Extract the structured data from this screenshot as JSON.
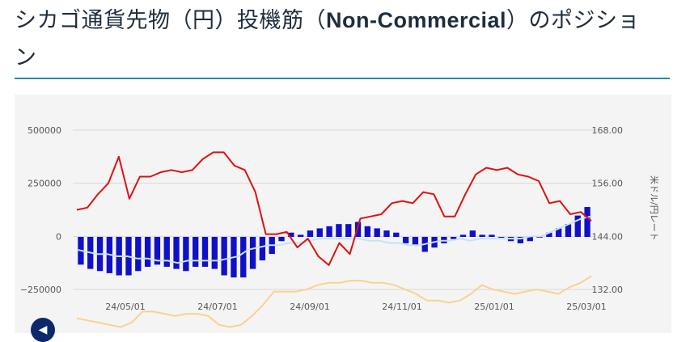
{
  "title": {
    "prefix": "シカゴ通貨先物（円）投機筋（",
    "bold": "Non-Commercial",
    "suffix": "）のポジション"
  },
  "nav": {
    "prev_icon": "◀"
  },
  "colors": {
    "bars": "#1010c8",
    "red_line": "#e01010",
    "light_blue_line": "#c6e2f7",
    "orange_line": "#fbd190",
    "grid": "#d8d8d8",
    "accent_rule": "#2a86a8",
    "button": "#0b2a6b"
  },
  "chart_data": {
    "type": "bar+line",
    "right_axis_label": "米ドル/円レート",
    "left_ticks": [
      "500000",
      "250000",
      "0",
      "−250000"
    ],
    "right_ticks": [
      "168.00",
      "156.00",
      "144.00",
      "132.00"
    ],
    "x_ticks": [
      "24/05/01",
      "24/07/01",
      "24/09/01",
      "24/11/01",
      "25/01/01",
      "25/03/01"
    ],
    "ylim_left": [
      -250000,
      500000
    ],
    "ylim_right": [
      132,
      168
    ],
    "grid": true,
    "net_position_bars": [
      -130000,
      -150000,
      -160000,
      -170000,
      -180000,
      -180000,
      -160000,
      -140000,
      -130000,
      -140000,
      -150000,
      -160000,
      -140000,
      -140000,
      -150000,
      -180000,
      -190000,
      -190000,
      -150000,
      -110000,
      -80000,
      -20000,
      20000,
      10000,
      30000,
      40000,
      50000,
      60000,
      60000,
      70000,
      50000,
      40000,
      30000,
      20000,
      -30000,
      -40000,
      -70000,
      -50000,
      -30000,
      -10000,
      10000,
      30000,
      10000,
      10000,
      0,
      -20000,
      -30000,
      -20000,
      0,
      20000,
      40000,
      60000,
      100000,
      140000
    ],
    "red_line": [
      150,
      150.5,
      153.5,
      156,
      162,
      152.5,
      157.5,
      157.5,
      158.5,
      159,
      158.5,
      159,
      161.5,
      163,
      163,
      160,
      159,
      154,
      144.5,
      144.5,
      145,
      141.5,
      143.5,
      139.5,
      137.5,
      142.5,
      140,
      148,
      148.5,
      149,
      151.5,
      152,
      151.5,
      154,
      153.5,
      148.5,
      148.5,
      153.5,
      158,
      159.5,
      159,
      159.5,
      158,
      157.5,
      156.5,
      151.5,
      152,
      149,
      149.5,
      147.5
    ],
    "light_blue_line": [
      141,
      140.5,
      140,
      140,
      139.5,
      139.5,
      139,
      139,
      138.5,
      138.5,
      138,
      138.5,
      138.5,
      138.5,
      138.5,
      139,
      139.5,
      141,
      141.5,
      142,
      142,
      142.5,
      142.5,
      143,
      143.5,
      143.5,
      143.5,
      143.5,
      143.5,
      143,
      143,
      142.5,
      142.5,
      142,
      142,
      142.5,
      143,
      143,
      143.5,
      143,
      143.5,
      143.5,
      143.5,
      143.5,
      143.5,
      144,
      144,
      145,
      146,
      147,
      148,
      148.5
    ],
    "orange_line": [
      125.5,
      125,
      124.5,
      124,
      123.5,
      124.5,
      127,
      127,
      126.5,
      126,
      126.5,
      126.5,
      126,
      124,
      123.5,
      124,
      126,
      128.5,
      131.5,
      131.5,
      131.5,
      132,
      133,
      133.5,
      133.5,
      134,
      134,
      133.5,
      133.5,
      133,
      132,
      131,
      129.5,
      129.5,
      129,
      129.5,
      131,
      133,
      132,
      131.5,
      131,
      131.5,
      132,
      131.5,
      131,
      132.5,
      133.5,
      135
    ]
  }
}
